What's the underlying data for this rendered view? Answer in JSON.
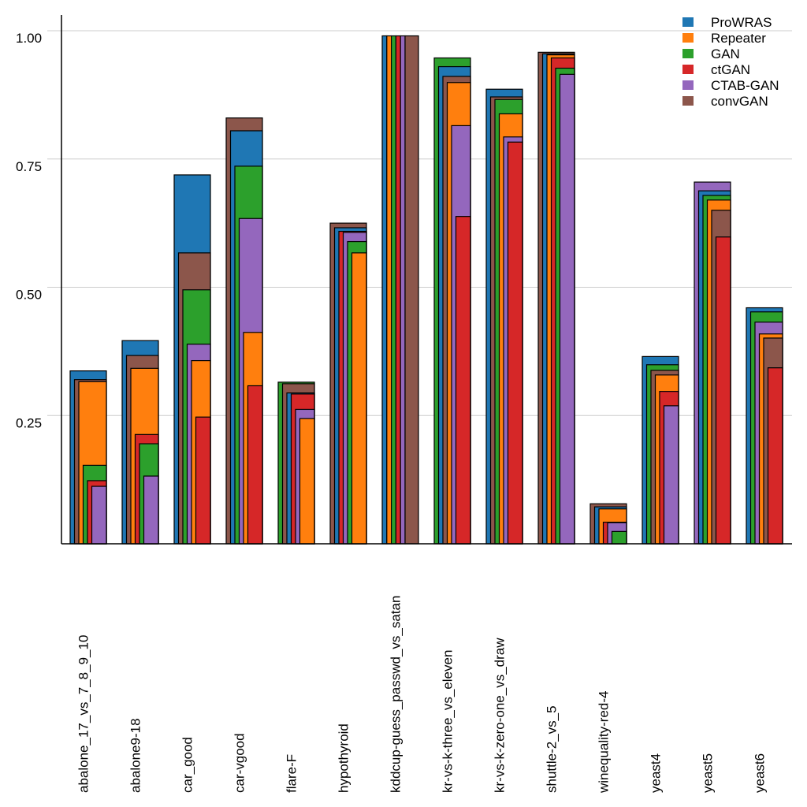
{
  "chart_data": {
    "type": "bar",
    "style": "overlapping-nested-bars",
    "title": "",
    "xlabel": "",
    "ylabel": "",
    "ylim": [
      0,
      1.0
    ],
    "yticks": [
      {
        "value": 0.25,
        "label": "0.25"
      },
      {
        "value": 0.5,
        "label": "0.50"
      },
      {
        "value": 0.75,
        "label": "0.75"
      },
      {
        "value": 1.0,
        "label": "1.00"
      }
    ],
    "grid": "horizontal",
    "legend_position": "top-right",
    "categories": [
      "abalone_17_vs_7_8_9_10",
      "abalone9-18",
      "car_good",
      "car-vgood",
      "flare-F",
      "hypothyroid",
      "kddcup-guess_passwd_vs_satan",
      "kr-vs-k-three_vs_eleven",
      "kr-vs-k-zero-one_vs_draw",
      "shuttle-2_vs_5",
      "winequality-red-4",
      "yeast4",
      "yeast5",
      "yeast6"
    ],
    "series": [
      {
        "name": "ProWRAS",
        "color": "#1f77b4",
        "values": [
          0.337,
          0.396,
          0.719,
          0.805,
          0.294,
          0.616,
          0.99,
          0.93,
          0.886,
          0.955,
          0.072,
          0.365,
          0.688,
          0.46
        ]
      },
      {
        "name": "Repeater",
        "color": "#ff7f0e",
        "values": [
          0.316,
          0.342,
          0.357,
          0.412,
          0.244,
          0.567,
          0.99,
          0.899,
          0.838,
          0.953,
          0.068,
          0.329,
          0.67,
          0.409
        ]
      },
      {
        "name": "GAN",
        "color": "#2ca02c",
        "values": [
          0.153,
          0.195,
          0.495,
          0.736,
          0.315,
          0.589,
          0.99,
          0.947,
          0.866,
          0.927,
          0.024,
          0.349,
          0.679,
          0.452
        ]
      },
      {
        "name": "ctGAN",
        "color": "#d62728",
        "values": [
          0.123,
          0.213,
          0.247,
          0.308,
          0.292,
          0.609,
          0.99,
          0.638,
          0.783,
          0.947,
          0.042,
          0.297,
          0.598,
          0.343
        ]
      },
      {
        "name": "CTAB-GAN",
        "color": "#9467bd",
        "values": [
          0.112,
          0.132,
          0.389,
          0.634,
          0.262,
          0.607,
          0.99,
          0.815,
          0.793,
          0.915,
          0.041,
          0.269,
          0.705,
          0.432
        ]
      },
      {
        "name": "convGAN",
        "color": "#8c564b",
        "values": [
          0.32,
          0.367,
          0.567,
          0.83,
          0.312,
          0.625,
          0.99,
          0.911,
          0.871,
          0.958,
          0.078,
          0.338,
          0.65,
          0.401
        ]
      }
    ]
  }
}
